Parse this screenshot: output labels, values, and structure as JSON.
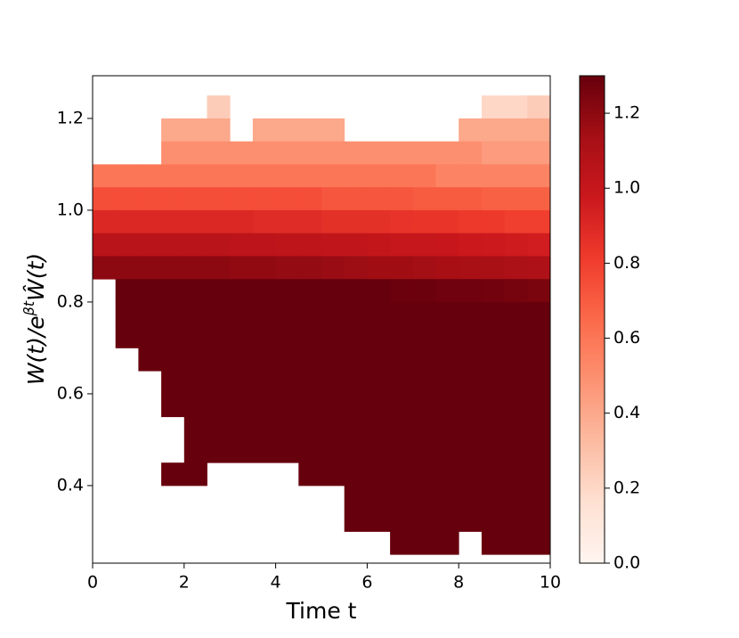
{
  "chart_data": {
    "type": "heatmap",
    "xlabel": "Time t",
    "ylabel": {
      "base": "W(t)/e",
      "sup": "βt",
      "rest": "Ŵ(t)"
    },
    "xlim": [
      0,
      10
    ],
    "ylim": [
      0.231,
      1.293
    ],
    "xticks": [
      0,
      2,
      4,
      6,
      8,
      10
    ],
    "yticks": [
      0.4,
      0.6,
      0.8,
      {
        "value": 1.0,
        "label": "1.0"
      },
      1.2
    ],
    "x_bins": [
      0,
      0.5,
      1,
      1.5,
      2,
      2.5,
      3,
      3.5,
      4,
      4.5,
      5,
      5.5,
      6,
      6.5,
      7,
      7.5,
      8,
      8.5,
      9,
      9.5,
      10
    ],
    "y_bins": [
      1.25,
      1.2,
      1.15,
      1.1,
      1.05,
      1.0,
      0.95,
      0.9,
      0.85,
      0.8,
      0.75,
      0.7,
      0.65,
      0.6,
      0.55,
      0.5,
      0.45,
      0.4,
      0.35,
      0.3,
      0.25
    ],
    "values": [
      [
        null,
        null,
        null,
        null,
        null,
        0.25,
        null,
        null,
        null,
        null,
        null,
        null,
        null,
        null,
        null,
        null,
        null,
        0.2,
        0.2,
        0.25
      ],
      [
        null,
        null,
        null,
        0.4,
        0.4,
        0.4,
        null,
        0.4,
        0.4,
        0.4,
        0.4,
        null,
        null,
        null,
        null,
        null,
        0.4,
        0.4,
        0.4,
        0.4
      ],
      [
        null,
        null,
        null,
        0.5,
        0.5,
        0.5,
        0.5,
        0.5,
        0.5,
        0.5,
        0.5,
        0.5,
        0.5,
        0.5,
        0.5,
        0.5,
        0.5,
        0.45,
        0.45,
        0.45
      ],
      [
        0.6,
        0.6,
        0.6,
        0.6,
        0.6,
        0.6,
        0.6,
        0.6,
        0.6,
        0.6,
        0.6,
        0.6,
        0.6,
        0.6,
        0.6,
        0.55,
        0.55,
        0.55,
        0.55,
        0.55
      ],
      [
        0.75,
        0.75,
        0.75,
        0.75,
        0.75,
        0.75,
        0.75,
        0.75,
        0.75,
        0.75,
        0.72,
        0.72,
        0.72,
        0.72,
        0.7,
        0.7,
        0.7,
        0.68,
        0.68,
        0.68
      ],
      [
        0.9,
        0.9,
        0.9,
        0.9,
        0.9,
        0.9,
        0.9,
        0.88,
        0.88,
        0.88,
        0.86,
        0.86,
        0.86,
        0.85,
        0.84,
        0.84,
        0.82,
        0.82,
        0.8,
        0.8
      ],
      [
        1.05,
        1.05,
        1.05,
        1.05,
        1.05,
        1.05,
        1.04,
        1.04,
        1.03,
        1.03,
        1.02,
        1.02,
        1.01,
        1.0,
        1.0,
        0.99,
        0.98,
        0.97,
        0.96,
        0.95
      ],
      [
        1.2,
        1.2,
        1.2,
        1.2,
        1.2,
        1.2,
        1.19,
        1.19,
        1.18,
        1.18,
        1.17,
        1.16,
        1.15,
        1.15,
        1.14,
        1.13,
        1.12,
        1.12,
        1.11,
        1.1
      ],
      [
        null,
        1.3,
        1.3,
        1.3,
        1.3,
        1.3,
        1.3,
        1.3,
        1.3,
        1.3,
        1.3,
        1.3,
        1.3,
        1.29,
        1.29,
        1.28,
        1.28,
        1.27,
        1.26,
        1.25
      ],
      [
        null,
        1.3,
        1.3,
        1.3,
        1.3,
        1.3,
        1.3,
        1.3,
        1.3,
        1.3,
        1.3,
        1.3,
        1.3,
        1.3,
        1.3,
        1.3,
        1.3,
        1.3,
        1.3,
        1.3
      ],
      [
        null,
        1.3,
        1.3,
        1.3,
        1.3,
        1.3,
        1.3,
        1.3,
        1.3,
        1.3,
        1.3,
        1.3,
        1.3,
        1.3,
        1.3,
        1.3,
        1.3,
        1.3,
        1.3,
        1.3
      ],
      [
        null,
        null,
        1.3,
        1.3,
        1.3,
        1.3,
        1.3,
        1.3,
        1.3,
        1.3,
        1.3,
        1.3,
        1.3,
        1.3,
        1.3,
        1.3,
        1.3,
        1.3,
        1.3,
        1.3
      ],
      [
        null,
        null,
        null,
        1.3,
        1.3,
        1.3,
        1.3,
        1.3,
        1.3,
        1.3,
        1.3,
        1.3,
        1.3,
        1.3,
        1.3,
        1.3,
        1.3,
        1.3,
        1.3,
        1.3
      ],
      [
        null,
        null,
        null,
        1.3,
        1.3,
        1.3,
        1.3,
        1.3,
        1.3,
        1.3,
        1.3,
        1.3,
        1.3,
        1.3,
        1.3,
        1.3,
        1.3,
        1.3,
        1.3,
        1.3
      ],
      [
        null,
        null,
        null,
        null,
        1.3,
        1.3,
        1.3,
        1.3,
        1.3,
        1.3,
        1.3,
        1.3,
        1.3,
        1.3,
        1.3,
        1.3,
        1.3,
        1.3,
        1.3,
        1.3
      ],
      [
        null,
        null,
        null,
        null,
        1.3,
        1.3,
        1.3,
        1.3,
        1.3,
        1.3,
        1.3,
        1.3,
        1.3,
        1.3,
        1.3,
        1.3,
        1.3,
        1.3,
        1.3,
        1.3
      ],
      [
        null,
        null,
        null,
        1.3,
        1.3,
        null,
        null,
        null,
        null,
        1.3,
        1.3,
        1.3,
        1.3,
        1.3,
        1.3,
        1.3,
        1.3,
        1.3,
        1.3,
        1.3
      ],
      [
        null,
        null,
        null,
        null,
        null,
        null,
        null,
        null,
        null,
        null,
        null,
        1.3,
        1.3,
        1.3,
        1.3,
        1.3,
        1.3,
        1.3,
        1.3,
        1.3
      ],
      [
        null,
        null,
        null,
        null,
        null,
        null,
        null,
        null,
        null,
        null,
        null,
        1.3,
        1.3,
        1.3,
        1.3,
        1.3,
        1.3,
        1.3,
        1.3,
        1.3
      ],
      [
        null,
        null,
        null,
        null,
        null,
        null,
        null,
        null,
        null,
        null,
        null,
        null,
        null,
        1.3,
        1.3,
        1.3,
        null,
        1.3,
        1.3,
        1.3
      ],
      [
        null,
        null,
        null,
        null,
        null,
        null,
        null,
        null,
        null,
        null,
        null,
        null,
        null,
        null,
        null,
        null,
        null,
        null,
        1.3,
        null
      ]
    ],
    "clim": [
      0,
      1.3
    ],
    "cticks": [
      {
        "value": 0,
        "label": "0.0"
      },
      0.2,
      0.4,
      0.6,
      0.8,
      {
        "value": 1.0,
        "label": "1.0"
      },
      1.2
    ],
    "colormap": [
      "#fff5f0",
      "#fee0d2",
      "#fcbba1",
      "#fc9272",
      "#fb6a4a",
      "#ef3b2c",
      "#cb181d",
      "#a50f15",
      "#67000d"
    ]
  }
}
